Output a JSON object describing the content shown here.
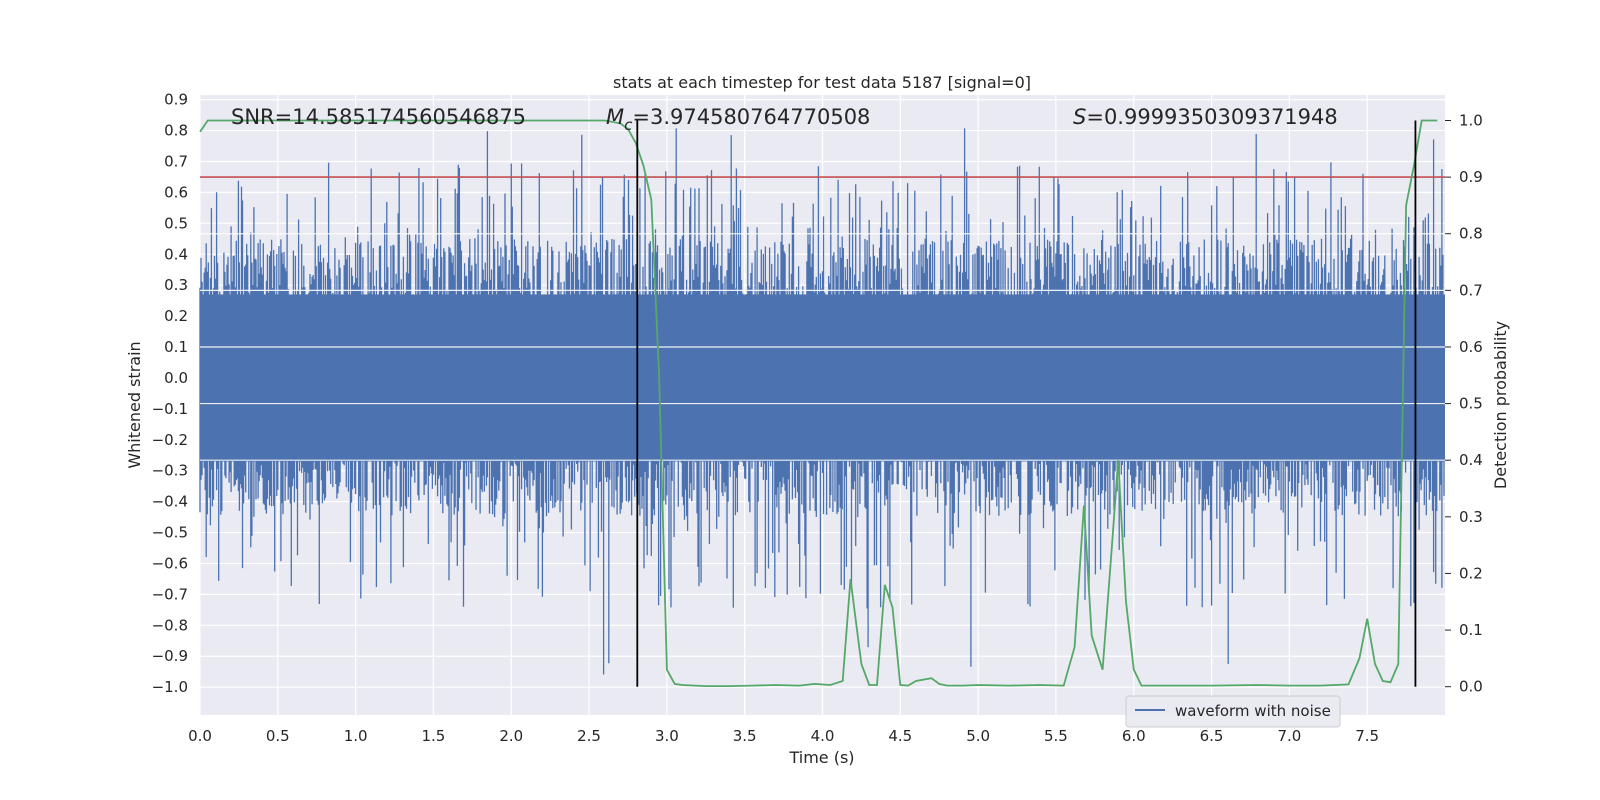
{
  "chart_data": {
    "type": "line",
    "title": "stats at each timestep for test data 5187 [signal=0]",
    "xlabel": "Time (s)",
    "ylabel_left": "Whitened strain",
    "ylabel_right": "Detection probability",
    "xlim": [
      0.0,
      8.0
    ],
    "ylim_left": [
      -1.09,
      0.915
    ],
    "ylim_right": [
      -0.05,
      1.045
    ],
    "x_ticks": [
      "0.0",
      "0.5",
      "1.0",
      "1.5",
      "2.0",
      "2.5",
      "3.0",
      "3.5",
      "4.0",
      "4.5",
      "5.0",
      "5.5",
      "6.0",
      "6.5",
      "7.0",
      "7.5"
    ],
    "x_tick_values": [
      0.0,
      0.5,
      1.0,
      1.5,
      2.0,
      2.5,
      3.0,
      3.5,
      4.0,
      4.5,
      5.0,
      5.5,
      6.0,
      6.5,
      7.0,
      7.5
    ],
    "y_left_ticks": [
      "0.9",
      "0.8",
      "0.7",
      "0.6",
      "0.5",
      "0.4",
      "0.3",
      "0.2",
      "0.1",
      "0.0",
      "−0.1",
      "−0.2",
      "−0.3",
      "−0.4",
      "−0.5",
      "−0.6",
      "−0.7",
      "−0.8",
      "−0.9",
      "−1.0"
    ],
    "y_left_tick_values": [
      0.9,
      0.8,
      0.7,
      0.6,
      0.5,
      0.4,
      0.3,
      0.2,
      0.1,
      0.0,
      -0.1,
      -0.2,
      -0.3,
      -0.4,
      -0.5,
      -0.6,
      -0.7,
      -0.8,
      -0.9,
      -1.0
    ],
    "y_right_ticks": [
      "1.0",
      "0.9",
      "0.8",
      "0.7",
      "0.6",
      "0.5",
      "0.4",
      "0.3",
      "0.2",
      "0.1",
      "0.0"
    ],
    "y_right_tick_values": [
      1.0,
      0.9,
      0.8,
      0.7,
      0.6,
      0.5,
      0.4,
      0.3,
      0.2,
      0.1,
      0.0
    ],
    "annotations": {
      "snr": "SNR=14.585174560546875",
      "mc_symbol": "M",
      "mc_sub": "c",
      "mc_value": "=3.974580764770508",
      "s_symbol": "S",
      "s_value": "=0.9999350309371948"
    },
    "threshold_right": 0.9,
    "vertical_lines_x": [
      2.81,
      7.81
    ],
    "waveform": {
      "name": "waveform with noise",
      "samples": 1200,
      "typical_max": 0.45,
      "typical_min": -0.45,
      "peak_max": 0.82,
      "peak_min": -1.0
    },
    "probability_series": {
      "name": "detection probability",
      "x": [
        0.0,
        0.05,
        0.1,
        0.5,
        1.0,
        1.5,
        2.0,
        2.5,
        2.6,
        2.7,
        2.75,
        2.8,
        2.85,
        2.9,
        2.95,
        3.0,
        3.05,
        3.1,
        3.25,
        3.4,
        3.55,
        3.7,
        3.85,
        3.95,
        4.05,
        4.13,
        4.18,
        4.25,
        4.3,
        4.35,
        4.4,
        4.45,
        4.5,
        4.55,
        4.6,
        4.7,
        4.75,
        4.8,
        4.9,
        5.0,
        5.2,
        5.4,
        5.55,
        5.62,
        5.68,
        5.73,
        5.8,
        5.86,
        5.9,
        5.95,
        6.0,
        6.05,
        6.2,
        6.5,
        6.8,
        7.0,
        7.2,
        7.38,
        7.45,
        7.5,
        7.55,
        7.6,
        7.65,
        7.7,
        7.75,
        7.8,
        7.85,
        7.9,
        7.95
      ],
      "y": [
        0.98,
        1.0,
        1.0,
        1.0,
        1.0,
        1.0,
        1.0,
        1.0,
        1.0,
        0.995,
        0.985,
        0.96,
        0.92,
        0.86,
        0.55,
        0.03,
        0.005,
        0.003,
        0.001,
        0.001,
        0.002,
        0.003,
        0.002,
        0.005,
        0.003,
        0.01,
        0.19,
        0.04,
        0.003,
        0.003,
        0.18,
        0.14,
        0.003,
        0.002,
        0.01,
        0.015,
        0.005,
        0.002,
        0.002,
        0.003,
        0.002,
        0.003,
        0.002,
        0.07,
        0.32,
        0.09,
        0.03,
        0.25,
        0.4,
        0.15,
        0.03,
        0.002,
        0.002,
        0.002,
        0.003,
        0.002,
        0.002,
        0.004,
        0.05,
        0.12,
        0.04,
        0.01,
        0.008,
        0.04,
        0.85,
        0.92,
        1.0,
        1.0,
        1.0
      ]
    },
    "legend": {
      "placement": "lower-right",
      "entries": [
        "waveform with noise"
      ]
    },
    "grid": true
  },
  "colors": {
    "axes_bg": "#eaeaf2",
    "grid": "#ffffff",
    "waveform": "#4c72b0",
    "probability": "#55a868",
    "threshold": "#c44e52",
    "vline": "#000000"
  }
}
